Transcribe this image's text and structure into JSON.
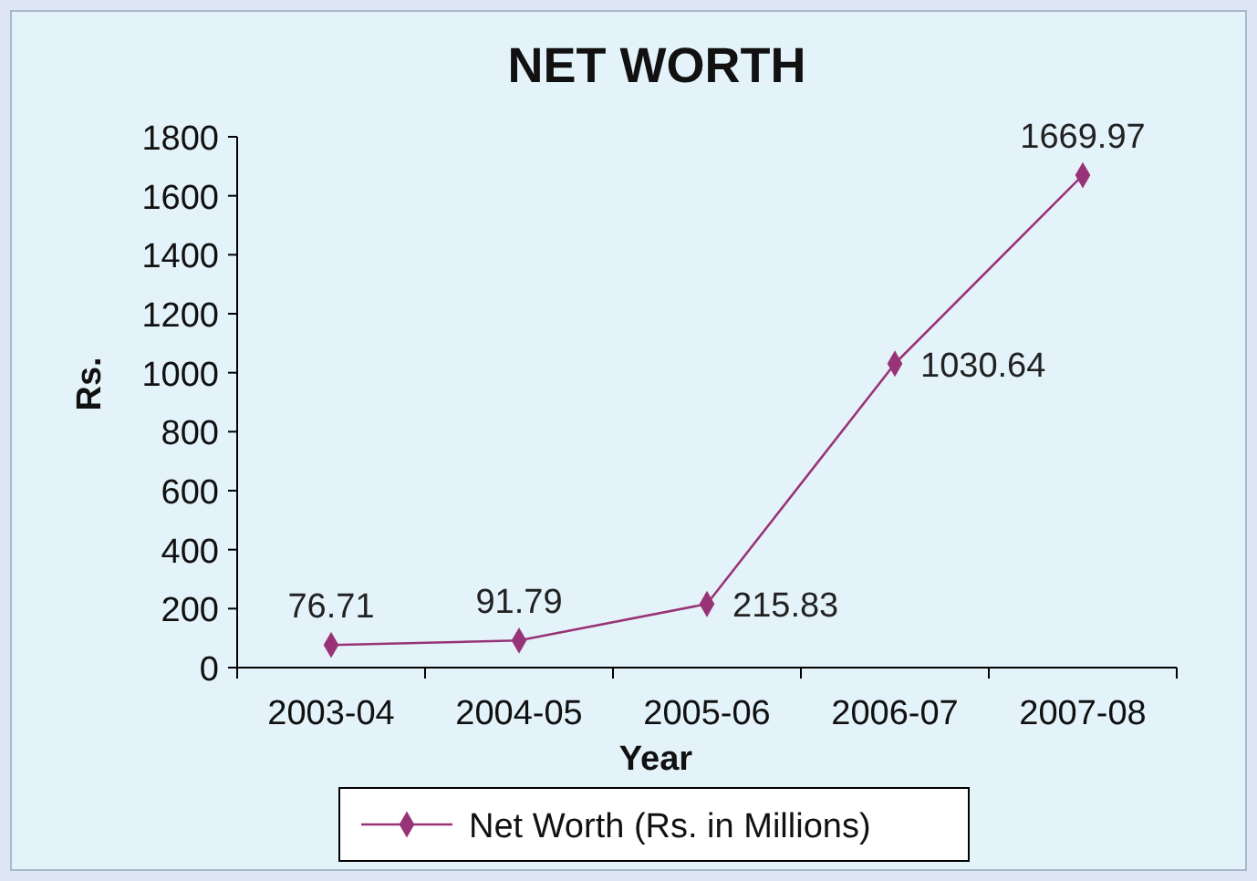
{
  "chart_data": {
    "type": "line",
    "title": "NET WORTH",
    "xlabel": "Year",
    "ylabel": "Rs.",
    "categories": [
      "2003-04",
      "2004-05",
      "2005-06",
      "2006-07",
      "2007-08"
    ],
    "series": [
      {
        "name": "Net Worth (Rs. in Millions)",
        "color": "#993377",
        "values": [
          76.71,
          91.79,
          215.83,
          1030.64,
          1669.97
        ]
      }
    ],
    "ylim": [
      0,
      1800
    ],
    "yticks": [
      0,
      200,
      400,
      600,
      800,
      1000,
      1200,
      1400,
      1600,
      1800
    ],
    "data_labels": true,
    "legend": "bottom",
    "marker": "diamond",
    "grid": false
  }
}
